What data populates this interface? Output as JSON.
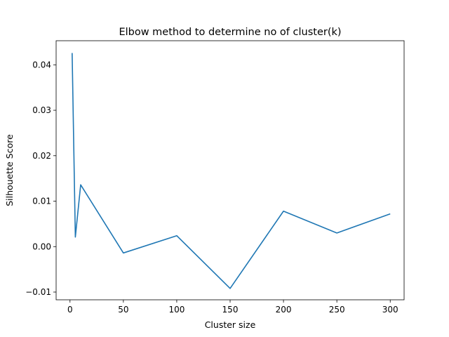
{
  "chart_data": {
    "type": "line",
    "title": "Elbow method to determine no of cluster(k)",
    "xlabel": "Cluster size",
    "ylabel": "Silhouette Score",
    "xlim": [
      -13,
      313
    ],
    "ylim": [
      -0.0117,
      0.0453
    ],
    "xticks": [
      0,
      50,
      100,
      150,
      200,
      250,
      300
    ],
    "xtick_labels": [
      "0",
      "50",
      "100",
      "150",
      "200",
      "250",
      "300"
    ],
    "yticks": [
      -0.01,
      0.0,
      0.01,
      0.02,
      0.03,
      0.04
    ],
    "ytick_labels": [
      "−0.01",
      "0.00",
      "0.01",
      "0.02",
      "0.03",
      "0.04"
    ],
    "grid": false,
    "series": [
      {
        "color": "#1f77b4",
        "x": [
          2,
          5,
          10,
          50,
          100,
          150,
          200,
          250,
          300
        ],
        "y": [
          0.0426,
          0.0021,
          0.0136,
          -0.0014,
          0.0024,
          -0.0092,
          0.0078,
          0.003,
          0.0072
        ]
      }
    ]
  }
}
